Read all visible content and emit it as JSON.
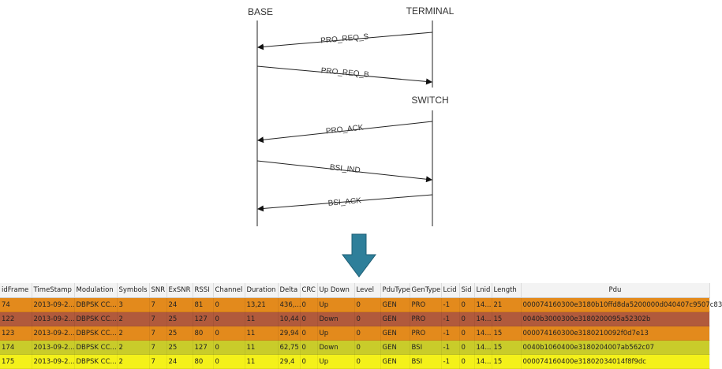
{
  "diagram": {
    "participants": {
      "base": "BASE",
      "terminal": "TERMINAL",
      "switch": "SWITCH"
    },
    "messages": [
      {
        "label": "PRO_REQ_S",
        "from": "terminal",
        "to": "base"
      },
      {
        "label": "PRO_REQ_B",
        "from": "base",
        "to": "terminal"
      },
      {
        "label": "PRO_ACK",
        "from": "terminal",
        "to": "base"
      },
      {
        "label": "BSI_IND",
        "from": "base",
        "to": "terminal"
      },
      {
        "label": "BSI_ACK",
        "from": "terminal",
        "to": "base"
      }
    ],
    "arrow_color": "#2e7f9a"
  },
  "table": {
    "columns": [
      "idFrame",
      "TimeStamp",
      "Modulation",
      "Symbols",
      "SNR",
      "ExSNR",
      "RSSI",
      "Channel",
      "Duration",
      "Delta",
      "CRC",
      "Up Down",
      "Level",
      "PduType",
      "GenType",
      "Lcid",
      "Sid",
      "Lnid",
      "Length",
      "Pdu"
    ],
    "rows": [
      {
        "color": "#e38a1c",
        "cells": [
          "74",
          "2013-09-2...",
          "DBPSK CC...",
          "3",
          "7",
          "24",
          "81",
          "0",
          "13,21",
          "436,...",
          "0",
          "Up",
          "0",
          "GEN",
          "PRO",
          "-1",
          "0",
          "14...",
          "21",
          "000074160300e3180b10ffd8da5200000d040407c9507c83"
        ]
      },
      {
        "color": "#b15a3c",
        "cells": [
          "122",
          "2013-09-2...",
          "DBPSK CC...",
          "2",
          "7",
          "25",
          "127",
          "0",
          "11",
          "10,44",
          "0",
          "Down",
          "0",
          "GEN",
          "PRO",
          "-1",
          "0",
          "14...",
          "15",
          "0040b3000300e3180200095a52302b"
        ]
      },
      {
        "color": "#e38a1c",
        "cells": [
          "123",
          "2013-09-2...",
          "DBPSK CC...",
          "2",
          "7",
          "25",
          "80",
          "0",
          "11",
          "29,94",
          "0",
          "Up",
          "0",
          "GEN",
          "PRO",
          "-1",
          "0",
          "14...",
          "15",
          "000074160300e3180210092f0d7e13"
        ]
      },
      {
        "color": "#c9cc2a",
        "cells": [
          "174",
          "2013-09-2...",
          "DBPSK CC...",
          "2",
          "7",
          "25",
          "127",
          "0",
          "11",
          "62,75",
          "0",
          "Down",
          "0",
          "GEN",
          "BSI",
          "-1",
          "0",
          "14...",
          "15",
          "0040b1060400e3180204007ab562c07"
        ]
      },
      {
        "color": "#f4f11a",
        "cells": [
          "175",
          "2013-09-2...",
          "DBPSK CC...",
          "2",
          "7",
          "24",
          "80",
          "0",
          "11",
          "29,4",
          "0",
          "Up",
          "0",
          "GEN",
          "BSI",
          "-1",
          "0",
          "14...",
          "15",
          "000074160400e31802034014f8f9dc"
        ]
      }
    ]
  }
}
